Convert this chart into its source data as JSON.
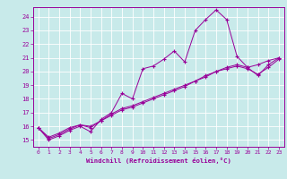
{
  "xlabel": "Windchill (Refroidissement éolien,°C)",
  "xlim": [
    -0.5,
    23.5
  ],
  "ylim": [
    14.5,
    24.7
  ],
  "yticks": [
    15,
    16,
    17,
    18,
    19,
    20,
    21,
    22,
    23,
    24
  ],
  "xticks": [
    0,
    1,
    2,
    3,
    4,
    5,
    6,
    7,
    8,
    9,
    10,
    11,
    12,
    13,
    14,
    15,
    16,
    17,
    18,
    19,
    20,
    21,
    22,
    23
  ],
  "bg_color": "#c8eaea",
  "grid_color": "#aacccc",
  "line_color": "#990099",
  "line1_x": [
    0,
    1,
    2,
    3,
    4,
    5,
    6,
    7,
    8,
    9,
    10,
    11,
    12,
    13,
    14,
    15,
    16,
    17,
    18,
    19,
    20,
    21,
    22,
    23
  ],
  "line1_y": [
    15.9,
    15.0,
    15.3,
    15.7,
    16.0,
    15.6,
    16.5,
    17.0,
    18.4,
    18.0,
    20.2,
    20.4,
    20.9,
    21.5,
    20.7,
    23.0,
    23.8,
    24.5,
    23.8,
    21.1,
    20.3,
    19.7,
    20.5,
    21.0
  ],
  "line2_x": [
    0,
    1,
    2,
    3,
    4,
    5,
    6,
    7,
    8,
    9,
    10,
    11,
    12,
    13,
    14,
    15,
    16,
    17,
    18,
    19,
    20,
    21,
    22,
    23
  ],
  "line2_y": [
    15.9,
    15.1,
    15.4,
    15.8,
    16.1,
    15.9,
    16.4,
    16.8,
    17.2,
    17.4,
    17.7,
    18.0,
    18.3,
    18.6,
    18.9,
    19.3,
    19.7,
    20.0,
    20.3,
    20.5,
    20.3,
    20.5,
    20.8,
    21.0
  ],
  "line3_x": [
    0,
    1,
    2,
    3,
    4,
    5,
    6,
    7,
    8,
    9,
    10,
    11,
    12,
    13,
    14,
    15,
    16,
    17,
    18,
    19,
    20,
    21,
    22,
    23
  ],
  "line3_y": [
    15.9,
    15.2,
    15.5,
    15.9,
    16.1,
    16.0,
    16.4,
    16.9,
    17.3,
    17.5,
    17.8,
    18.1,
    18.4,
    18.7,
    19.0,
    19.3,
    19.6,
    20.0,
    20.2,
    20.4,
    20.2,
    19.8,
    20.3,
    20.9
  ]
}
